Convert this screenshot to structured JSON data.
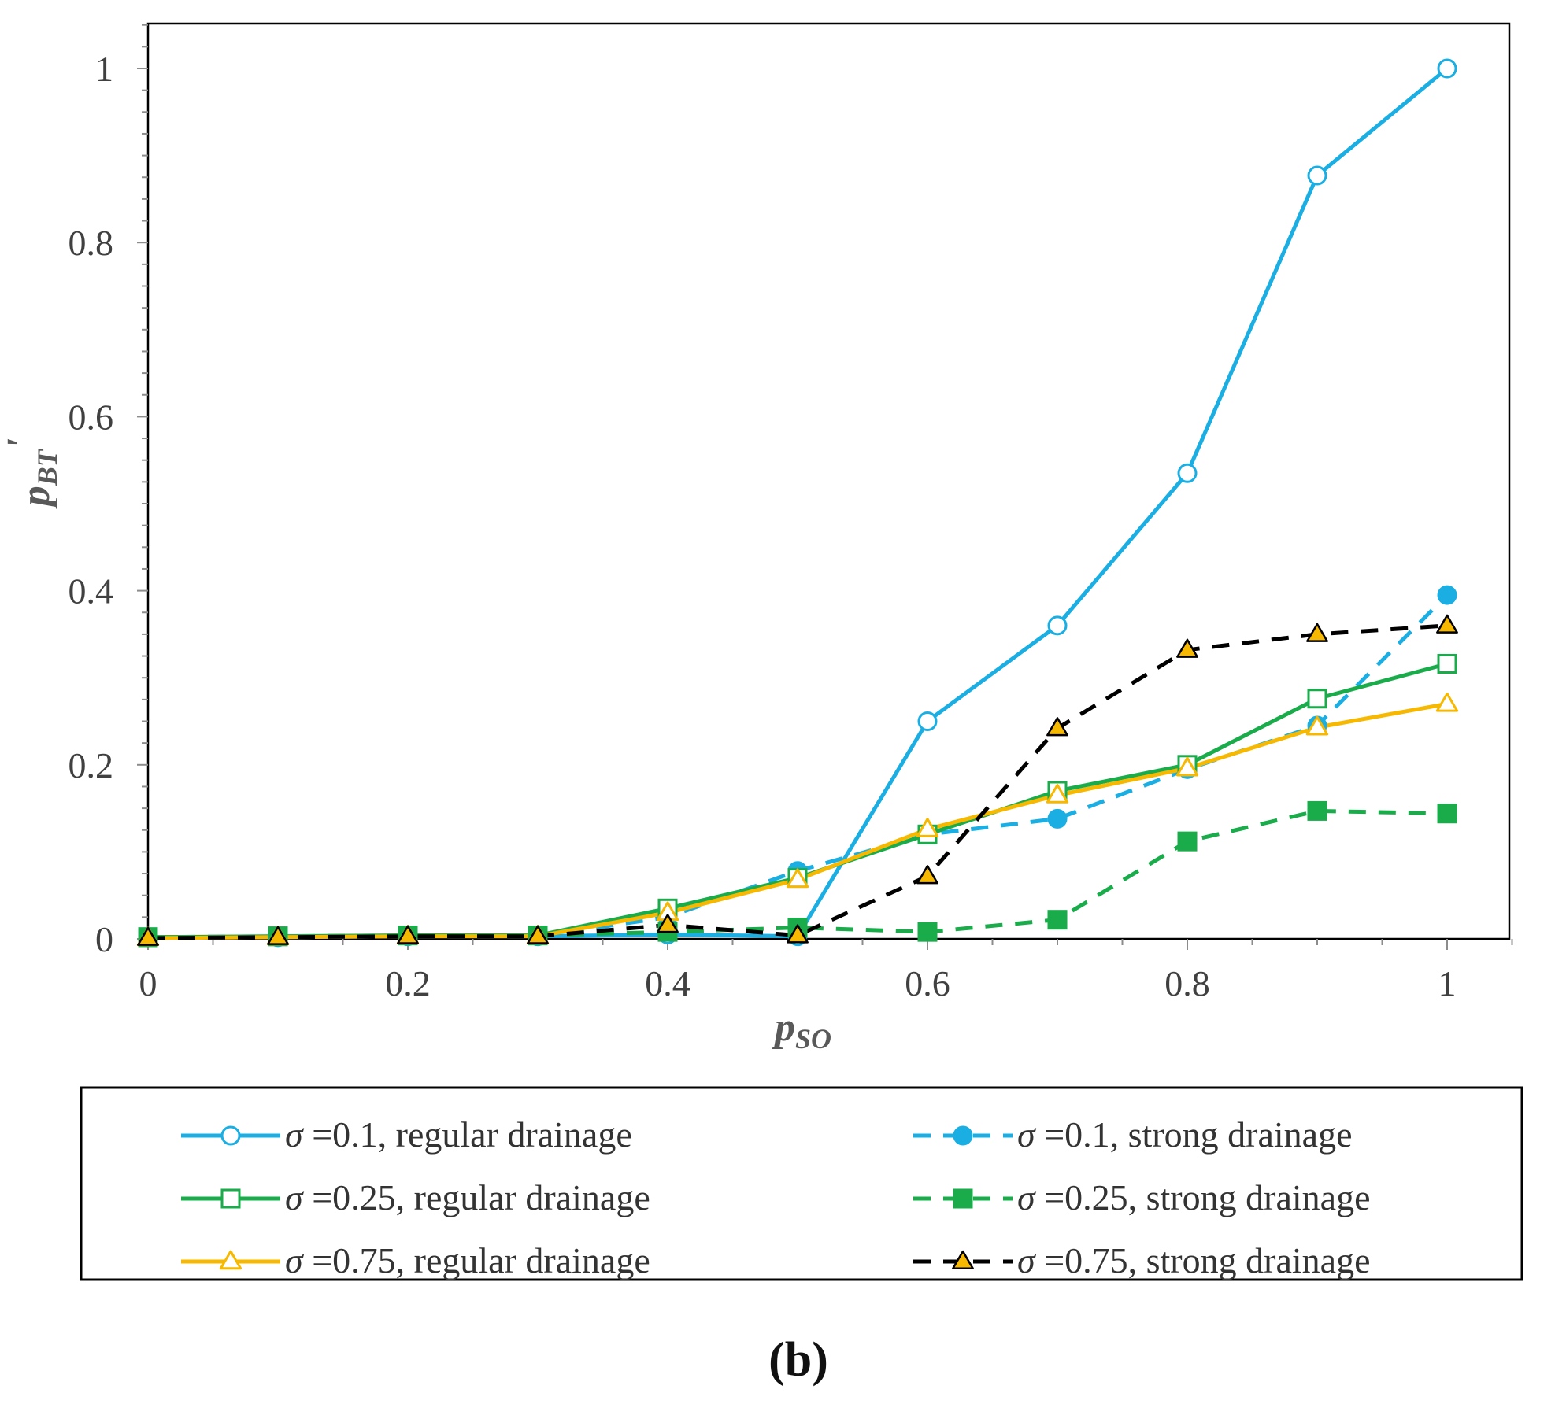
{
  "chart_data": {
    "type": "line",
    "panel_label": "(b)",
    "xlabel": {
      "main": "p",
      "sub": "SO"
    },
    "ylabel": {
      "main": "p",
      "sub": "BT",
      "prime": "'"
    },
    "xlim": [
      0,
      1.05
    ],
    "ylim": [
      0,
      1.05
    ],
    "x_ticks": [
      0,
      0.2,
      0.4,
      0.6,
      0.8,
      1
    ],
    "x_tick_labels": [
      "0",
      "0.2",
      "0.4",
      "0.6",
      "0.8",
      "1"
    ],
    "y_ticks": [
      0,
      0.2,
      0.4,
      0.6,
      0.8,
      1
    ],
    "y_tick_labels": [
      "0",
      "0.2",
      "0.4",
      "0.6",
      "0.8",
      "1"
    ],
    "grid": false,
    "legend_position": "bottom",
    "x": [
      0,
      0.1,
      0.2,
      0.3,
      0.4,
      0.5,
      0.6,
      0.7,
      0.8,
      0.9,
      1.0
    ],
    "series": [
      {
        "name": "regular drainage",
        "sigma": "0.1",
        "color": "#1aaee3",
        "dash": "solid",
        "marker": "circle",
        "filled": false,
        "values": [
          0.002,
          0.002,
          0.003,
          0.003,
          0.005,
          0.003,
          0.25,
          0.36,
          0.535,
          0.877,
          1.0
        ]
      },
      {
        "name": "strong drainage",
        "sigma": "0.1",
        "color": "#1aaee3",
        "dash": "dashed",
        "marker": "circle",
        "filled": true,
        "values": [
          0.002,
          0.002,
          0.003,
          0.003,
          0.025,
          0.078,
          0.12,
          0.138,
          0.195,
          0.245,
          0.395
        ]
      },
      {
        "name": "regular drainage",
        "sigma": "0.25",
        "color": "#1aab4b",
        "dash": "solid",
        "marker": "square",
        "filled": false,
        "values": [
          0.002,
          0.003,
          0.004,
          0.004,
          0.035,
          0.07,
          0.12,
          0.17,
          0.2,
          0.276,
          0.316
        ]
      },
      {
        "name": "strong drainage",
        "sigma": "0.25",
        "color": "#1aab4b",
        "dash": "dashed",
        "marker": "square",
        "filled": true,
        "values": [
          0.002,
          0.003,
          0.004,
          0.004,
          0.008,
          0.013,
          0.008,
          0.022,
          0.112,
          0.147,
          0.144
        ]
      },
      {
        "name": "regular drainage",
        "sigma": "0.75",
        "color": "#f6b800",
        "dash": "solid",
        "marker": "triangle",
        "filled": false,
        "values": [
          0.001,
          0.002,
          0.003,
          0.003,
          0.03,
          0.068,
          0.126,
          0.165,
          0.196,
          0.243,
          0.27
        ]
      },
      {
        "name": "strong drainage",
        "sigma": "0.75",
        "color": "#000000",
        "fill": "#f6b800",
        "dash": "dashed",
        "marker": "triangle",
        "filled": true,
        "values": [
          0.001,
          0.002,
          0.003,
          0.003,
          0.016,
          0.004,
          0.072,
          0.242,
          0.332,
          0.35,
          0.36
        ]
      }
    ],
    "legend": [
      {
        "symbol": "σ",
        "text": " =0.1, regular drainage"
      },
      {
        "symbol": "σ",
        "text": " =0.1, strong drainage"
      },
      {
        "symbol": "σ",
        "text": " =0.25, regular drainage"
      },
      {
        "symbol": "σ",
        "text": " =0.25, strong drainage"
      },
      {
        "symbol": "σ",
        "text": " =0.75, regular drainage"
      },
      {
        "symbol": "σ",
        "text": " =0.75, strong drainage"
      }
    ]
  }
}
